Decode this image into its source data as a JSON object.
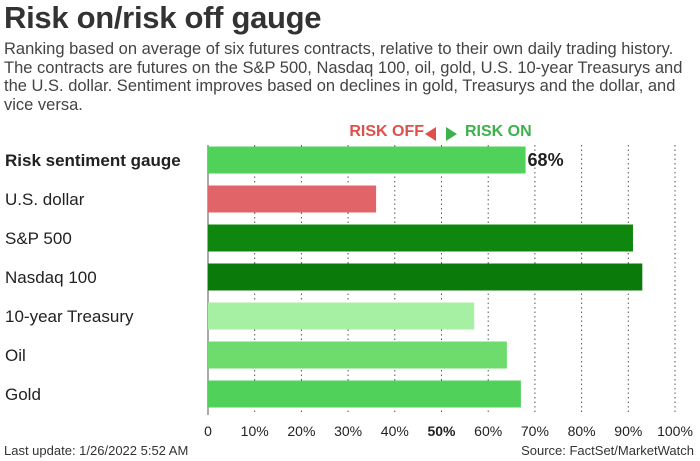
{
  "header": {
    "title": "Risk on/risk off gauge",
    "subtitle": "Ranking based on average of six futures contracts, relative to their own daily trading history. The contracts are futures on the S&P 500, Nasdaq 100, oil, gold, U.S. 10-year Treasurys and the U.S. dollar. Sentiment improves based on declines in gold, Treasurys and the dollar, and vice versa."
  },
  "legend": {
    "risk_off": "RISK OFF",
    "risk_on": "RISK ON",
    "risk_off_color": "#e0504a",
    "risk_on_color": "#3db24a"
  },
  "footer": {
    "last_update": "Last update: 1/26/2022 5:52 AM",
    "source": "Source: FactSet/MarketWatch"
  },
  "chart_data": {
    "type": "bar",
    "orientation": "horizontal",
    "categories": [
      "Risk sentiment gauge",
      "U.S. dollar",
      "S&P 500",
      "Nasdaq 100",
      "10-year Treasury",
      "Oil",
      "Gold"
    ],
    "values": [
      68,
      36,
      91,
      93,
      57,
      64,
      67
    ],
    "colors": [
      "#4fd15a",
      "#e06468",
      "#0f870f",
      "#0a7a0a",
      "#a5f0a3",
      "#6ddc6d",
      "#4fd15a"
    ],
    "data_labels": [
      {
        "category": "Risk sentiment gauge",
        "text": "68%"
      }
    ],
    "xlim": [
      0,
      100
    ],
    "x_ticks": [
      "0",
      "10%",
      "20%",
      "30%",
      "40%",
      "50%",
      "60%",
      "70%",
      "80%",
      "90%",
      "100%"
    ],
    "bold_tick": "50%",
    "grid": "vertical dotted"
  }
}
